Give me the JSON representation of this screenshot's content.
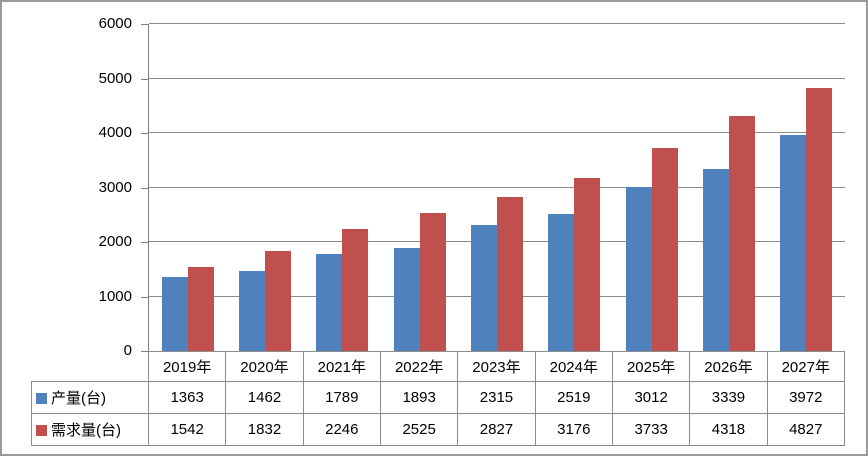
{
  "chart_data": {
    "type": "bar",
    "categories": [
      "2019年",
      "2020年",
      "2021年",
      "2022年",
      "2023年",
      "2024年",
      "2025年",
      "2026年",
      "2027年"
    ],
    "series": [
      {
        "name": "产量(台)",
        "color": "#4f81bd",
        "values": [
          1363,
          1462,
          1789,
          1893,
          2315,
          2519,
          3012,
          3339,
          3972
        ]
      },
      {
        "name": "需求量(台)",
        "color": "#c0504d",
        "values": [
          1542,
          1832,
          2246,
          2525,
          2827,
          3176,
          3733,
          4318,
          4827
        ]
      }
    ],
    "title": "",
    "xlabel": "",
    "ylabel": "",
    "ylim": [
      0,
      6000
    ],
    "ytick_step": 1000,
    "yticks": [
      "0",
      "1000",
      "2000",
      "3000",
      "4000",
      "5000",
      "6000"
    ],
    "grid": true,
    "legend_position": "data-table-left",
    "colors": {
      "gridline": "#8c8c8c",
      "axis": "#7f7f7f",
      "table_border": "#8c8c8c",
      "frame_border": "#9a9a9a",
      "background": "#ffffff"
    }
  }
}
